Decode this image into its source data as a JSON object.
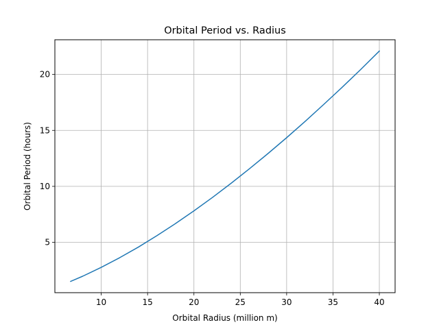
{
  "chart_data": {
    "type": "line",
    "title": "Orbital Period vs. Radius",
    "xlabel": "Orbital Radius (million m)",
    "ylabel": "Orbital Period (hours)",
    "xlim": [
      5.0,
      41.7
    ],
    "ylim": [
      0.5,
      23.1
    ],
    "xticks": [
      10,
      15,
      20,
      25,
      30,
      35,
      40
    ],
    "yticks": [
      5,
      10,
      15,
      20
    ],
    "grid": true,
    "series": [
      {
        "color": "#1f77b4",
        "x": [
          6.7,
          8,
          10,
          12,
          14,
          16,
          18,
          20,
          22,
          24,
          26,
          28,
          30,
          32,
          34,
          36,
          38,
          40
        ],
        "y": [
          1.51,
          1.97,
          2.76,
          3.63,
          4.57,
          5.59,
          6.67,
          7.81,
          9.01,
          10.27,
          11.58,
          12.94,
          14.35,
          15.81,
          17.32,
          18.86,
          20.45,
          22.09
        ]
      }
    ]
  }
}
